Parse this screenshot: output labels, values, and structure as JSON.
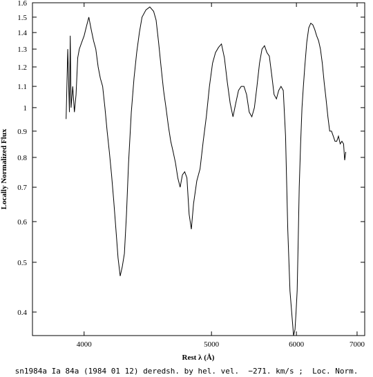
{
  "chart_data": {
    "type": "line",
    "xlabel": "Rest λ (Å)",
    "ylabel": "Locally Normalized Flux",
    "caption": "sn1984a Ia 84a (1984 01 12) deredsh. by hel. vel.  −271. km/s ;  Loc. Norm.",
    "x_scale": "reciprocal",
    "y_scale": "log",
    "xlim": [
      3700,
      7150
    ],
    "ylim": [
      0.36,
      1.6
    ],
    "x_ticks": [
      4000,
      5000,
      6000,
      7000
    ],
    "x_tick_labels": [
      "4000",
      "5000",
      "6000",
      "7000"
    ],
    "y_ticks": [
      0.4,
      0.5,
      0.6,
      0.7,
      0.8,
      0.9,
      1.0,
      1.1,
      1.2,
      1.3,
      1.4,
      1.5,
      1.6
    ],
    "y_tick_labels": [
      "0.4",
      "0.5",
      "0.6",
      "0.7",
      "0.8",
      "0.9",
      "1",
      "1.1",
      "1.2",
      "1.3",
      "1.4",
      "1.5",
      "1.6"
    ],
    "grid": false,
    "series": [
      {
        "x": [
          3890,
          3900,
          3910,
          3915,
          3920,
          3930,
          3940,
          3950,
          3960,
          3970,
          3985,
          4000,
          4015,
          4030,
          4045,
          4060,
          4075,
          4090,
          4105,
          4120,
          4135,
          4150,
          4165,
          4180,
          4195,
          4210,
          4225,
          4240,
          4255,
          4270,
          4285,
          4300,
          4320,
          4340,
          4360,
          4380,
          4400,
          4430,
          4460,
          4490,
          4510,
          4530,
          4550,
          4570,
          4590,
          4610,
          4630,
          4650,
          4670,
          4690,
          4710,
          4730,
          4750,
          4770,
          4790,
          4810,
          4830,
          4860,
          4890,
          4920,
          4950,
          4980,
          5010,
          5040,
          5070,
          5100,
          5130,
          5160,
          5190,
          5220,
          5250,
          5280,
          5310,
          5340,
          5370,
          5400,
          5430,
          5460,
          5490,
          5520,
          5550,
          5580,
          5610,
          5640,
          5670,
          5700,
          5730,
          5760,
          5790,
          5820,
          5850,
          5880,
          5910,
          5940,
          5960,
          5980,
          5995,
          6010,
          6025,
          6040,
          6060,
          6080,
          6100,
          6120,
          6150,
          6180,
          6210,
          6240,
          6270,
          6300,
          6330,
          6360,
          6390,
          6420,
          6450,
          6480,
          6510,
          6540,
          6570,
          6600,
          6630,
          6660,
          6690,
          6720,
          6750,
          6770,
          6790
        ],
        "y": [
          0.95,
          1.3,
          0.98,
          1.38,
          1.0,
          1.1,
          0.98,
          1.06,
          1.25,
          1.3,
          1.34,
          1.38,
          1.44,
          1.5,
          1.42,
          1.35,
          1.3,
          1.2,
          1.14,
          1.1,
          1.0,
          0.9,
          0.82,
          0.74,
          0.66,
          0.58,
          0.51,
          0.47,
          0.49,
          0.52,
          0.62,
          0.78,
          0.98,
          1.14,
          1.28,
          1.4,
          1.5,
          1.55,
          1.57,
          1.54,
          1.48,
          1.34,
          1.2,
          1.08,
          1.0,
          0.92,
          0.86,
          0.82,
          0.78,
          0.73,
          0.7,
          0.74,
          0.75,
          0.73,
          0.62,
          0.58,
          0.65,
          0.72,
          0.76,
          0.86,
          0.96,
          1.1,
          1.22,
          1.28,
          1.31,
          1.33,
          1.25,
          1.12,
          1.02,
          0.96,
          1.02,
          1.08,
          1.1,
          1.1,
          1.06,
          0.98,
          0.96,
          1.0,
          1.1,
          1.22,
          1.3,
          1.32,
          1.28,
          1.26,
          1.16,
          1.06,
          1.04,
          1.08,
          1.1,
          1.08,
          0.88,
          0.58,
          0.44,
          0.39,
          0.36,
          0.37,
          0.4,
          0.44,
          0.55,
          0.7,
          0.85,
          1.0,
          1.1,
          1.2,
          1.34,
          1.43,
          1.46,
          1.45,
          1.42,
          1.38,
          1.35,
          1.3,
          1.22,
          1.12,
          1.04,
          0.96,
          0.9,
          0.9,
          0.88,
          0.86,
          0.86,
          0.88,
          0.85,
          0.86,
          0.85,
          0.79,
          0.82
        ]
      }
    ]
  }
}
